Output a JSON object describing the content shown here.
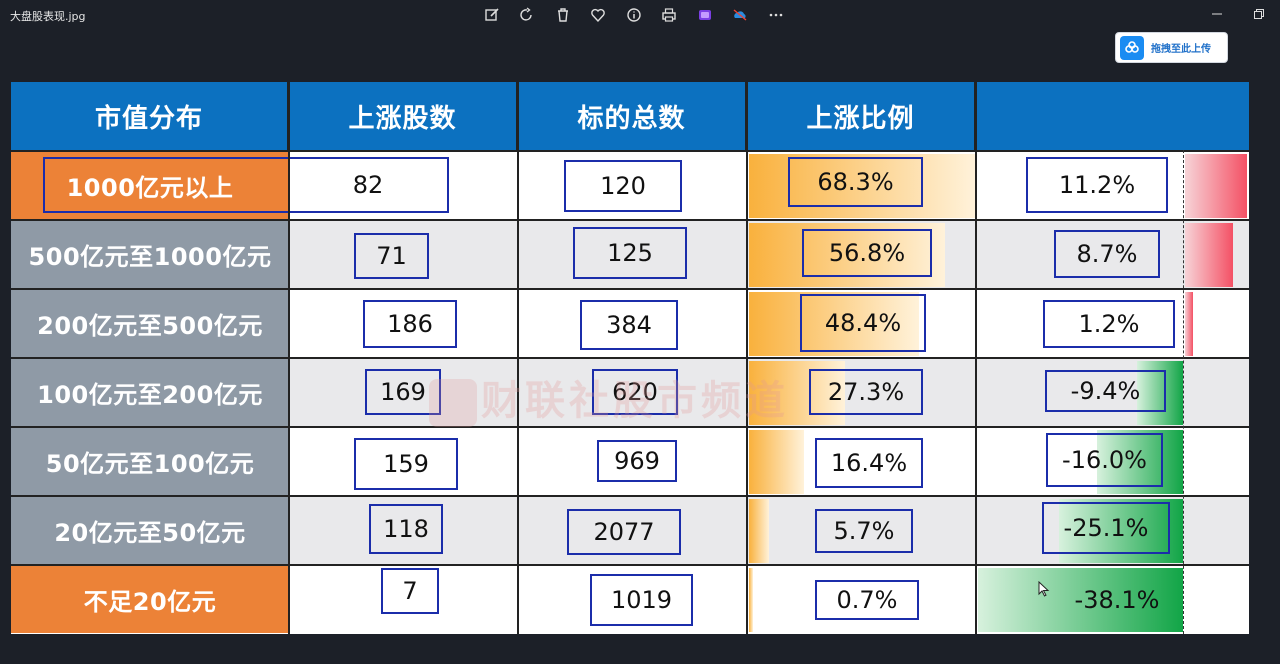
{
  "window": {
    "file_name": "大盘股表现.jpg",
    "toolbar": [
      {
        "name": "edit-icon"
      },
      {
        "name": "rotate-icon"
      },
      {
        "name": "delete-icon"
      },
      {
        "name": "favorite-icon"
      },
      {
        "name": "info-icon"
      },
      {
        "name": "print-icon"
      },
      {
        "name": "clipchamp-icon"
      },
      {
        "name": "onedrive-icon"
      },
      {
        "name": "more-icon"
      }
    ],
    "upload_label": "拖拽至此上传"
  },
  "table": {
    "headers": [
      "市值分布",
      "上涨股数",
      "标的总数",
      "上涨比例",
      ""
    ],
    "rows": [
      {
        "category": "1000亿元以上",
        "up": "82",
        "total": "120",
        "ratio": "68.3%",
        "change": "11.2%"
      },
      {
        "category": "500亿元至1000亿元",
        "up": "71",
        "total": "125",
        "ratio": "56.8%",
        "change": "8.7%"
      },
      {
        "category": "200亿元至500亿元",
        "up": "186",
        "total": "384",
        "ratio": "48.4%",
        "change": "1.2%"
      },
      {
        "category": "100亿元至200亿元",
        "up": "169",
        "total": "620",
        "ratio": "27.3%",
        "change": "-9.4%"
      },
      {
        "category": "50亿元至100亿元",
        "up": "159",
        "total": "969",
        "ratio": "16.4%",
        "change": "-16.0%"
      },
      {
        "category": "20亿元至50亿元",
        "up": "118",
        "total": "2077",
        "ratio": "5.7%",
        "change": "-25.1%"
      },
      {
        "category": "不足20亿元",
        "up": "7",
        "total": "1019",
        "ratio": "0.7%",
        "change": "-38.1%"
      }
    ],
    "watermark": "财联社股市频道"
  },
  "colors": {
    "header_blue": "#0c71c0",
    "orange": "#ec8237",
    "gray": "#8f9aa6",
    "box_blue": "#1b2daa"
  }
}
